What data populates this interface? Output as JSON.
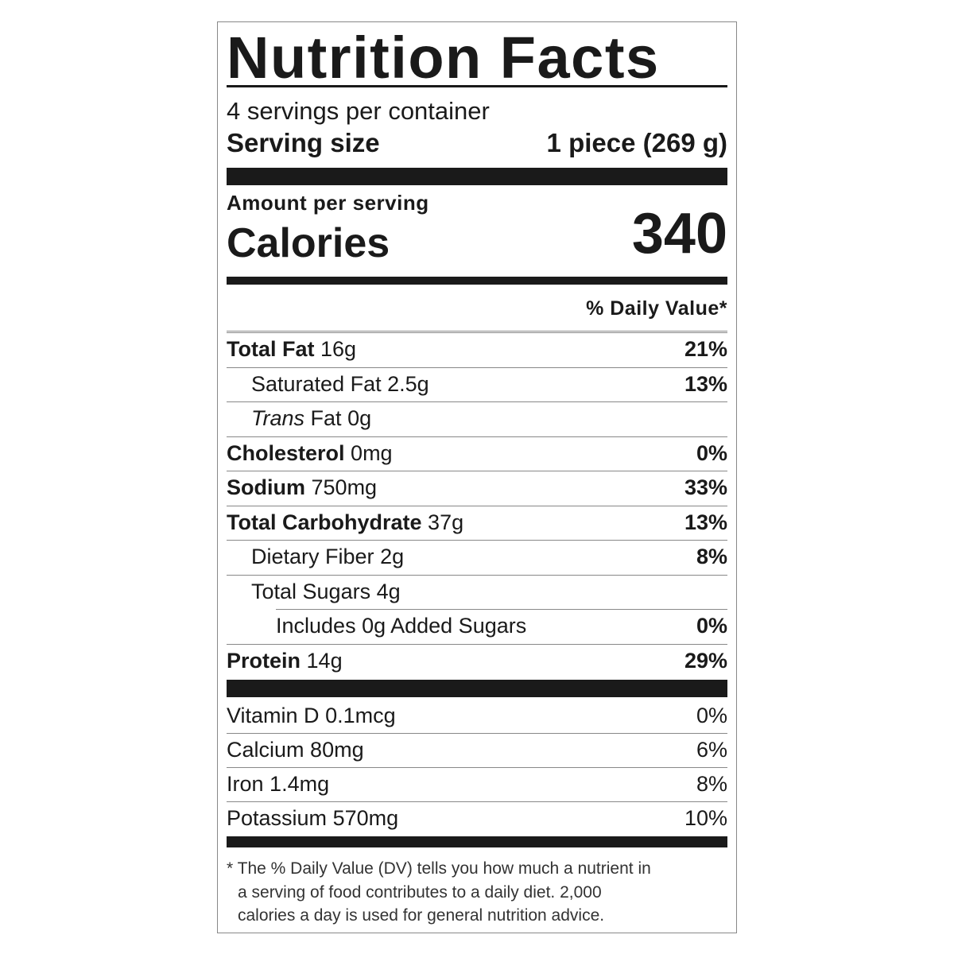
{
  "title": "Nutrition Facts",
  "servings": "4 servings per container",
  "serving_size": {
    "label": "Serving size",
    "value": "1 piece (269 g)"
  },
  "amount_per_serving": "Amount per serving",
  "calories": {
    "label": "Calories",
    "value": "340"
  },
  "daily_value_header": "% Daily Value*",
  "nutrients": [
    {
      "name": "Total Fat",
      "amount": "16g",
      "dv": "21%",
      "level": 0
    },
    {
      "name": "Saturated Fat",
      "amount": "2.5g",
      "dv": "13%",
      "level": 1
    },
    {
      "name_italic": "Trans",
      "name": "Fat",
      "amount": "0g",
      "level": 1
    },
    {
      "name": "Cholesterol",
      "amount": "0mg",
      "dv": "0%",
      "level": 0
    },
    {
      "name": "Sodium",
      "amount": "750mg",
      "dv": "33%",
      "level": 0
    },
    {
      "name": "Total Carbohydrate",
      "amount": "37g",
      "dv": "13%",
      "level": 0
    },
    {
      "name": "Dietary Fiber",
      "amount": "2g",
      "dv": "8%",
      "level": 1
    },
    {
      "name": "Total Sugars",
      "amount": "4g",
      "level": 1
    },
    {
      "name": "Includes 0g Added Sugars",
      "dv": "0%",
      "level": 2
    },
    {
      "name": "Protein",
      "amount": "14g",
      "dv": "29%",
      "level": 0
    }
  ],
  "vitamins": [
    {
      "name": "Vitamin D",
      "amount": "0.1mcg",
      "dv": "0%"
    },
    {
      "name": "Calcium",
      "amount": "80mg",
      "dv": "6%"
    },
    {
      "name": "Iron",
      "amount": "1.4mg",
      "dv": "8%"
    },
    {
      "name": "Potassium",
      "amount": "570mg",
      "dv": "10%"
    }
  ],
  "footnote": [
    "* The % Daily Value (DV) tells you how much a nutrient in",
    "a serving of food contributes to a daily diet. 2,000",
    "calories a day is used for general nutrition advice."
  ]
}
